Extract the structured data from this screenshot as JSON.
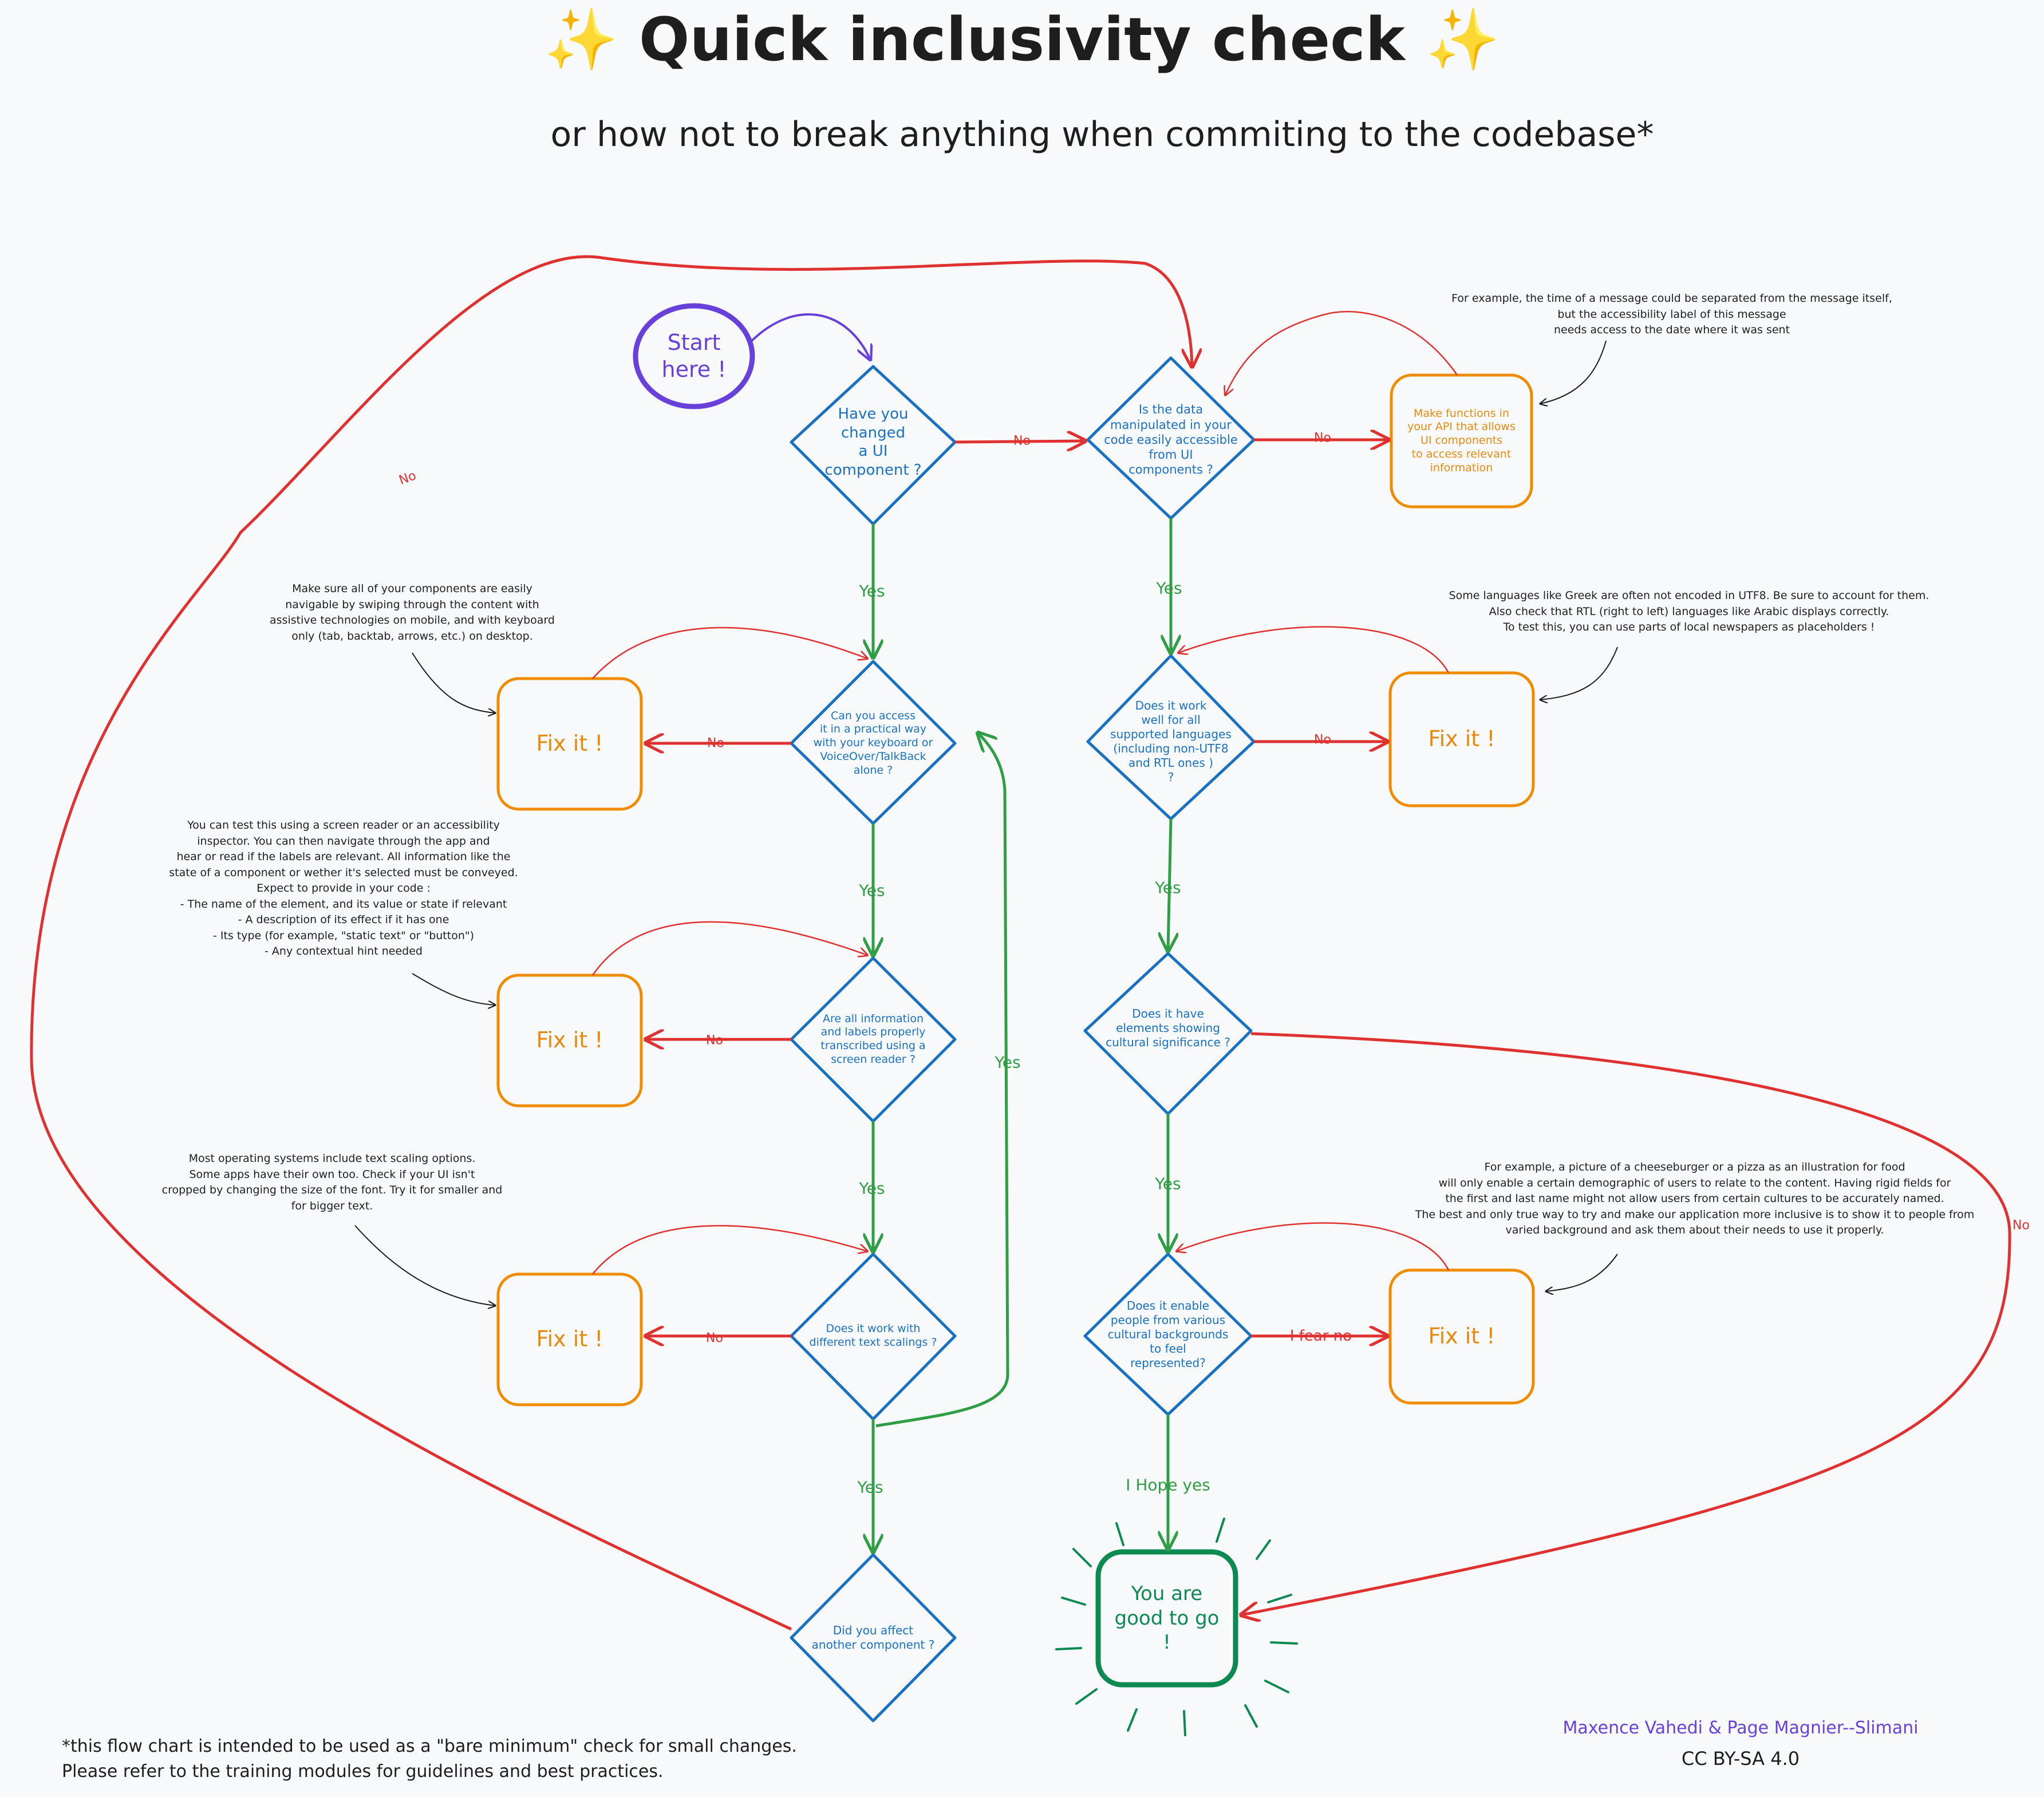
{
  "title": {
    "sparkle": "✨",
    "text": "Quick inclusivity check"
  },
  "subtitle": "or how not to break anything when commiting to the codebase*",
  "nodes": {
    "start": "Start\nhere !",
    "q_ui_changed": "Have you\nchanged\na UI\ncomponent ?",
    "q_keyboard": "Can you access\nit in a practical way\nwith your keyboard or\nVoiceOver/TalkBack\nalone ?",
    "q_screen_reader": "Are all information\nand labels properly\ntranscribed using a\nscreen reader ?",
    "q_text_scaling": "Does it work with\ndifferent text scalings ?",
    "q_other_component": "Did you affect\nanother component ?",
    "q_data_access": "Is the data\nmanipulated in your\ncode easily accessible\nfrom UI\ncomponents ?",
    "make_functions": "Make functions in\nyour API that allows\nUI components\nto access relevant\ninformation",
    "q_languages": "Does it work\nwell for all\nsupported languages\n(including non-UTF8\nand RTL ones )\n?",
    "q_cultural": "Does it have\nelements showing\ncultural significance ?",
    "q_represented": "Does it enable\npeople from various\ncultural backgrounds\nto feel\nrepresented?",
    "fix_it": "Fix it !",
    "good": "You are\ngood to go\n!"
  },
  "edge_labels": {
    "yes": "Yes",
    "no": "No",
    "i_hope_yes": "I Hope yes",
    "i_fear_no": "I fear no"
  },
  "notes": {
    "api_example": "For example, the time of a message could be separated from the message itself,\nbut the accessibility label of this message\nneeds access to the date where it was sent",
    "keyboard": "Make sure all of your components are easily\nnavigable by swiping through the content with\nassistive technologies on mobile, and with keyboard\nonly (tab, backtab, arrows, etc.) on desktop.",
    "screen_reader": "You can test this using a screen reader or an accessibility\ninspector. You can then navigate through the app and\nhear or read if the labels are relevant. All information like the\nstate of a component or wether it's selected must be conveyed.\nExpect to provide in your code :\n- The name of the element, and its value or state if relevant\n- A description of its effect if it has one\n- Its type (for example, \"static text\" or \"button\")\n- Any contextual hint needed",
    "text_scaling": "Most operating systems include text scaling options.\nSome apps have their own too. Check if your UI isn't\ncropped by changing the size of the font. Try it for smaller and\nfor bigger text.",
    "languages": "Some languages like Greek are often not encoded in UTF8. Be sure to account for them.\nAlso check that RTL (right to left) languages like Arabic displays correctly.\nTo test this, you can use parts of local newspapers as placeholders !",
    "cultural": "For example, a picture of a cheeseburger or a pizza as an illustration for food\nwill only enable a certain demographic of users to relate to the content. Having rigid fields for\nthe first and last name might not allow users from certain cultures to be accurately named.\nThe best and only true way to try and make our application more inclusive is to show it to people from\nvaried background and ask them about their needs to use it properly."
  },
  "footnote": "*this flow chart is intended to be used as a \"bare minimum\" check for small changes.\nPlease refer to the training modules for guidelines and best practices.",
  "authors": "Maxence Vahedi & Page Magnier--Slimani",
  "license": "CC BY-SA 4.0",
  "colors": {
    "blue": "#1971c2",
    "orange": "#f08c00",
    "green": "#2f9e44",
    "dark_green": "#0c8a52",
    "red": "#e03131",
    "purple": "#6741d9",
    "dark": "#1e1e1e"
  }
}
